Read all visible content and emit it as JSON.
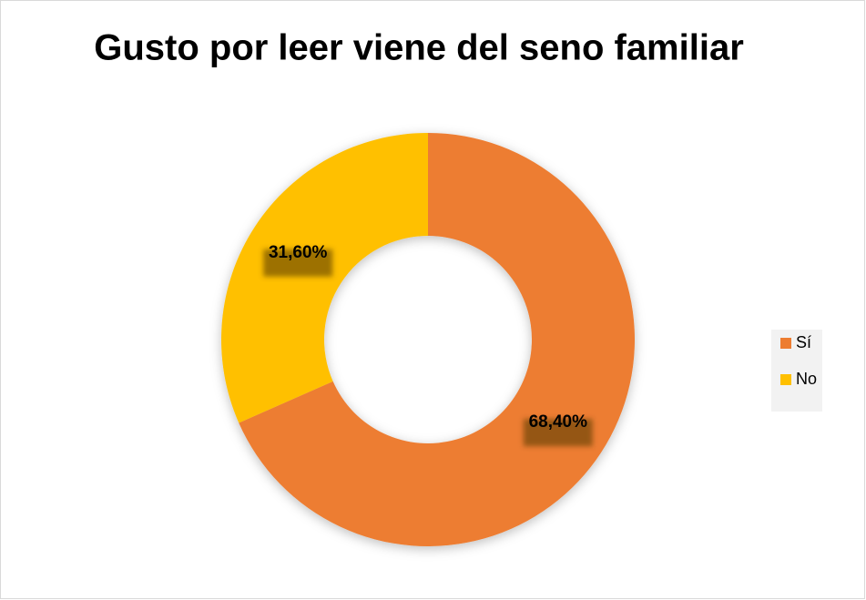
{
  "chart_data": {
    "type": "doughnut",
    "title": "Gusto por leer viene del seno familiar",
    "categories": [
      "Sí",
      "No"
    ],
    "values": [
      68.4,
      31.6
    ],
    "value_labels": [
      "68,40%",
      "31,60%"
    ],
    "colors": [
      "#ED7D31",
      "#FFC000"
    ],
    "legend": "right"
  }
}
